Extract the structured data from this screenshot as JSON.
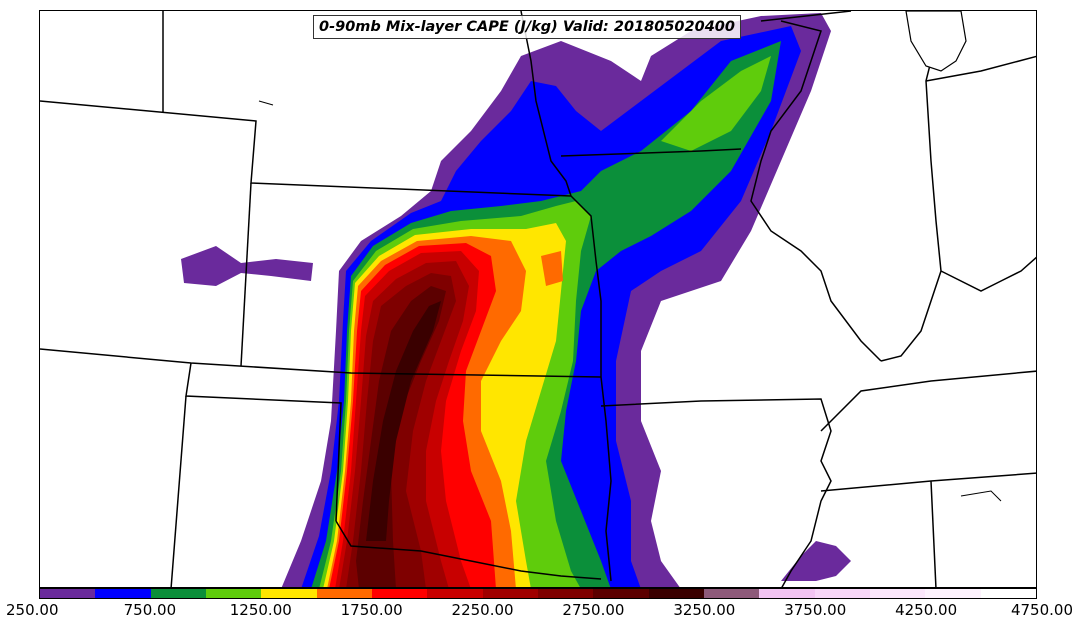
{
  "title": "0-90mb Mix-layer CAPE (J/kg) Valid: 201805020400",
  "colorbar": {
    "colors": [
      "#6a2a9c",
      "#0000ff",
      "#0b8f3a",
      "#5fcc0c",
      "#ffe600",
      "#ff6a00",
      "#ff0000",
      "#c80000",
      "#a00000",
      "#7f0000",
      "#5c0000",
      "#3a0000",
      "#8e5a7a",
      "#f2c4f2",
      "#f7d6f7",
      "#fbe6fb",
      "#fdf2fd",
      "#ffffff"
    ],
    "tick_labels": [
      "250.00",
      "750.00",
      "1250.00",
      "1750.00",
      "2250.00",
      "2750.00",
      "3250.00",
      "3750.00",
      "4250.00",
      "4750.00"
    ]
  },
  "map": {
    "variable": "0-90mb Mix-layer CAPE",
    "units": "J/kg",
    "valid_time": "201805020400"
  }
}
